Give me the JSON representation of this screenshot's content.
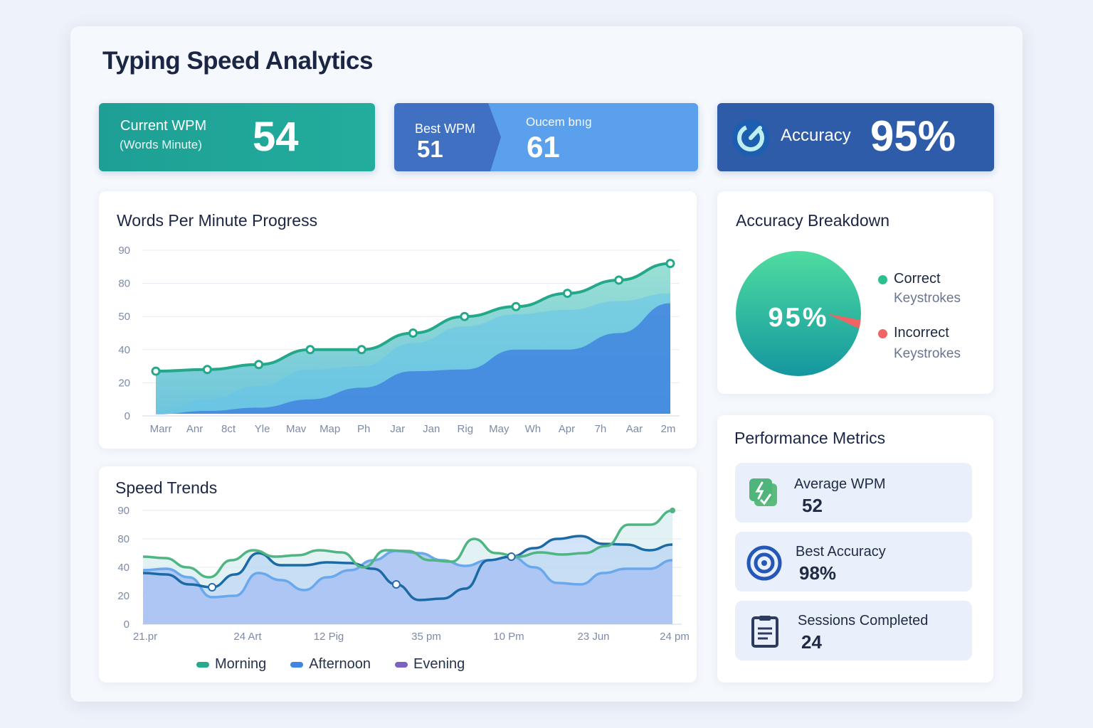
{
  "title": "Typing Speed Analytics",
  "cards": {
    "current": {
      "label": "Current WPM",
      "sublabel": "(Words Minute)",
      "value": "54",
      "color": "#1fa79a"
    },
    "best": {
      "label": "Best WPM",
      "value": "51",
      "label2": "Oucem bnıg",
      "value2": "61",
      "color": "#3f74c5",
      "color2": "#5aa0ec"
    },
    "accuracy": {
      "label": "Accuracy",
      "value": "95%",
      "icon": "gauge-icon",
      "color": "#2f5ca8"
    }
  },
  "accuracy_breakdown": {
    "title": "Accuracy Breakdown",
    "center_label": "95%",
    "legend": [
      {
        "label": "Correct",
        "sub": "Keystrokes",
        "color": "#2cc08d"
      },
      {
        "label": "Incorrect",
        "sub": "Keystrokes",
        "color": "#ef6464"
      }
    ]
  },
  "performance": {
    "title": "Performance Metrics",
    "items": [
      {
        "label": "Average WPM",
        "value": "52",
        "icon": "lightning-check-icon"
      },
      {
        "label": "Best Accuracy",
        "value": "98%",
        "icon": "target-icon"
      },
      {
        "label": "Sessions Completed",
        "value": "24",
        "icon": "clipboard-icon"
      }
    ]
  },
  "chart_data": [
    {
      "type": "area",
      "title": "Words Per Minute Progress",
      "yticks": [
        0,
        20,
        40,
        50,
        80,
        90
      ],
      "xticks": [
        "Marr",
        "Anr",
        "8ct",
        "Yle",
        "Mav",
        "Map",
        "Ph",
        "Jar",
        "Jan",
        "Rig",
        "May",
        "Wh",
        "Apr",
        "7h",
        "Aar",
        "2m"
      ],
      "series": [
        {
          "values": [
            27,
            28,
            31,
            40,
            40,
            45,
            50,
            59,
            71,
            81,
            86
          ],
          "color": "#23a88a",
          "markers": true
        },
        {
          "values": [
            3,
            10,
            18,
            28,
            30,
            42,
            47,
            52,
            56,
            64,
            71
          ],
          "color": "#6fc3e6",
          "layer": true
        },
        {
          "values": [
            1,
            3,
            5,
            10,
            17,
            27,
            28,
            40,
            40,
            45,
            62
          ],
          "color": "#3f7fe0",
          "layer": true
        }
      ],
      "grid": true
    },
    {
      "type": "line",
      "title": "Speed Trends",
      "yticks": [
        0,
        20,
        40,
        80,
        90
      ],
      "xticks": [
        "21.pr",
        "24 Art",
        "12 Pig",
        "35 pm",
        "10 Pm",
        "23 Jun",
        "24 pm"
      ],
      "legend": [
        {
          "name": "Morning",
          "color": "#26a98c"
        },
        {
          "name": "Afternoon",
          "color": "#3d86e6"
        },
        {
          "name": "Evening",
          "color": "#7d63c0"
        }
      ],
      "legend_position": "bottom",
      "series": [
        {
          "values": [
            55,
            53,
            40,
            33,
            50,
            64,
            55,
            57,
            64,
            61,
            40,
            64,
            63,
            50,
            48,
            80,
            60,
            55,
            61,
            58,
            60,
            70,
            85,
            85,
            90
          ],
          "color": "#4fb582"
        },
        {
          "values": [
            36,
            35,
            28,
            26,
            35,
            60,
            43,
            43,
            47,
            46,
            39,
            28,
            17,
            18,
            25,
            50,
            55,
            67,
            80,
            81,
            73,
            72,
            64,
            72
          ],
          "color": "#1b6aa6"
        },
        {
          "values": [
            38,
            39,
            33,
            19,
            20,
            36,
            31,
            24,
            33,
            38,
            50,
            63,
            60,
            50,
            42,
            50,
            55,
            40,
            29,
            28,
            36,
            39,
            39,
            50
          ],
          "color": "#6aa8ee"
        }
      ],
      "grid": true
    }
  ]
}
